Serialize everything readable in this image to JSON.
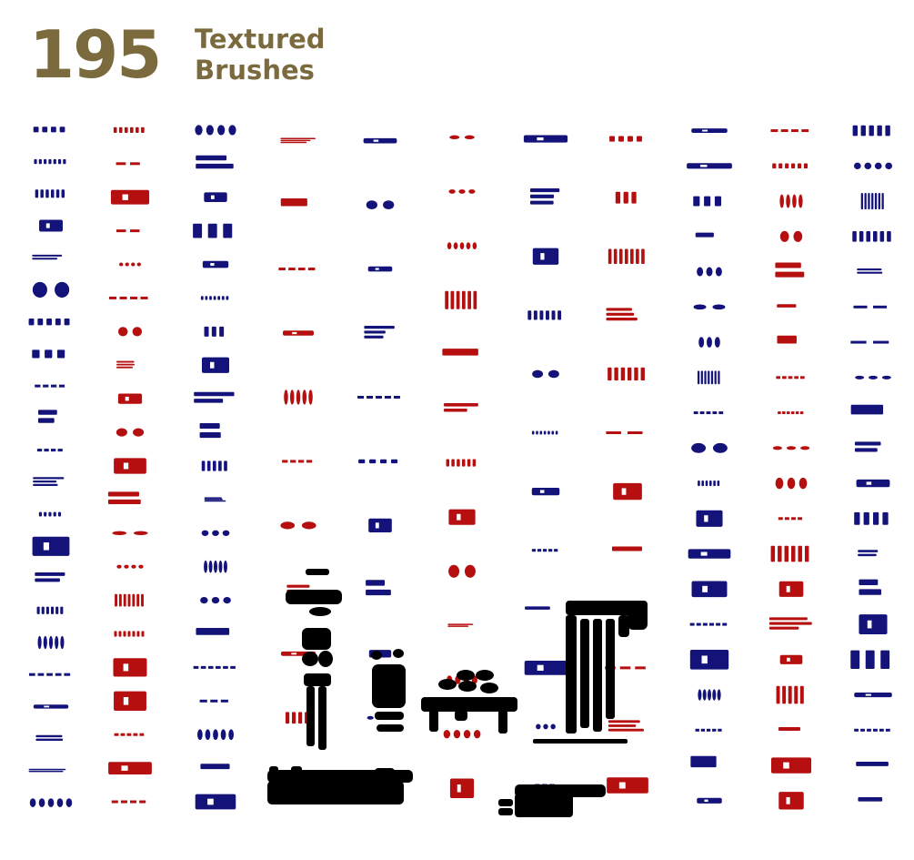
{
  "header": {
    "count": "195",
    "title_line1": "Textured",
    "title_line2": "Brushes",
    "color": "#7a6a3e"
  },
  "colors": {
    "navy": "#13137a",
    "red": "#b50f0f",
    "black": "#000000"
  },
  "brush_columns": [
    {
      "color": "navy",
      "count": 22
    },
    {
      "color": "red",
      "count": 21
    },
    {
      "color": "navy",
      "count": 21
    },
    {
      "color": "red",
      "count": 11
    },
    {
      "color": "navy",
      "count": 11
    },
    {
      "color": "red",
      "count": 13
    },
    {
      "color": "navy",
      "count": 12
    },
    {
      "color": "red",
      "count": 12
    },
    {
      "color": "navy",
      "count": 20
    },
    {
      "color": "red",
      "count": 20
    },
    {
      "color": "navy",
      "count": 20
    }
  ],
  "featured_brushes": [
    {
      "name": "tall-splatter-column",
      "color": "black"
    },
    {
      "name": "mask-shape",
      "color": "black"
    },
    {
      "name": "table-shape",
      "color": "black"
    },
    {
      "name": "dripping-panel",
      "color": "black"
    },
    {
      "name": "horizontal-stroke-left",
      "color": "black"
    },
    {
      "name": "horizontal-stroke-right",
      "color": "black"
    }
  ]
}
